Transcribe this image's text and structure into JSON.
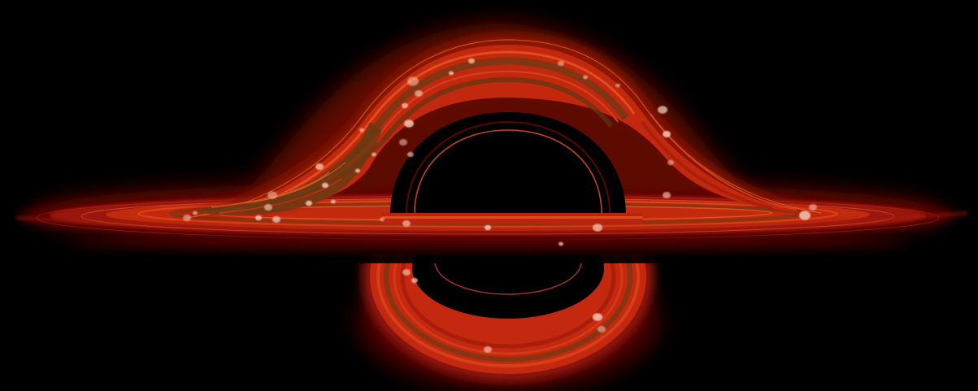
{
  "scene": {
    "subject": "black-hole-accretion-disk",
    "colors": {
      "background": "#000000",
      "disk_outer": "#7a0a04",
      "disk_mid": "#c0240e",
      "disk_bright": "#e8501e",
      "disk_brown": "#6b3a12",
      "speckle": "#f7c8b4",
      "photon_ring": "#d84a2a",
      "shadow": "#000000"
    }
  }
}
